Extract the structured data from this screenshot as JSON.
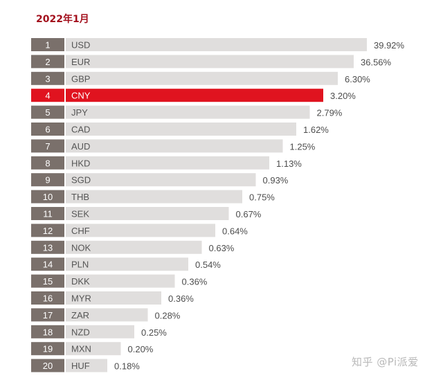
{
  "title": "2022年1月",
  "watermark": "知乎 @Pi派爱",
  "colors": {
    "title": "#a3101d",
    "rank_box": "#7a706b",
    "bar": "#e0dedd",
    "highlight": "#e0131f",
    "text": "#4d4d4d",
    "label_text": "#555555"
  },
  "chart_data": {
    "type": "bar",
    "orientation": "horizontal",
    "title": "2022年1月",
    "unit": "%",
    "highlight": "CNY",
    "ranks": [
      1,
      2,
      3,
      4,
      5,
      6,
      7,
      8,
      9,
      10,
      11,
      12,
      13,
      14,
      15,
      16,
      17,
      18,
      19,
      20
    ],
    "categories": [
      "USD",
      "EUR",
      "GBP",
      "CNY",
      "JPY",
      "CAD",
      "AUD",
      "HKD",
      "SGD",
      "THB",
      "SEK",
      "CHF",
      "NOK",
      "PLN",
      "DKK",
      "MYR",
      "ZAR",
      "NZD",
      "MXN",
      "HUF"
    ],
    "values": [
      39.92,
      36.56,
      6.3,
      3.2,
      2.79,
      1.62,
      1.25,
      1.13,
      0.93,
      0.75,
      0.67,
      0.64,
      0.63,
      0.54,
      0.36,
      0.36,
      0.28,
      0.25,
      0.2,
      0.18
    ],
    "labels": [
      "39.92%",
      "36.56%",
      "6.30%",
      "3.20%",
      "2.79%",
      "1.62%",
      "1.25%",
      "1.13%",
      "0.93%",
      "0.75%",
      "0.67%",
      "0.64%",
      "0.63%",
      "0.54%",
      "0.36%",
      "0.36%",
      "0.28%",
      "0.25%",
      "0.20%",
      "0.18%"
    ]
  }
}
